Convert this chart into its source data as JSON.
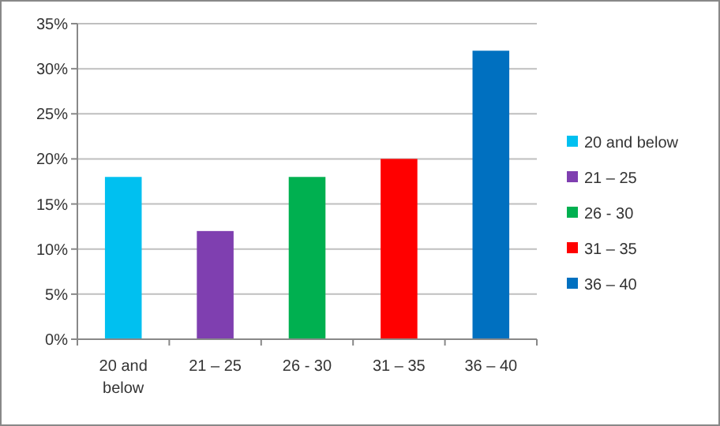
{
  "chart_data": {
    "type": "bar",
    "categories": [
      "20 and below",
      "21 – 25",
      "26 - 30",
      "31 – 35",
      "36 – 40"
    ],
    "series": [
      {
        "name": "20 and below",
        "color": "#00c0f0",
        "values": [
          18,
          null,
          null,
          null,
          null
        ]
      },
      {
        "name": "21 – 25",
        "color": "#7f3fb0",
        "values": [
          null,
          12,
          null,
          null,
          null
        ]
      },
      {
        "name": "26 - 30",
        "color": "#00b050",
        "values": [
          null,
          null,
          18,
          null,
          null
        ]
      },
      {
        "name": "31 – 35",
        "color": "#ff0000",
        "values": [
          null,
          null,
          null,
          20,
          null
        ]
      },
      {
        "name": "36 – 40",
        "color": "#0070c0",
        "values": [
          null,
          null,
          null,
          null,
          32
        ]
      }
    ],
    "ylim": [
      0,
      35
    ],
    "yticks": [
      {
        "value": 0,
        "label": "0%"
      },
      {
        "value": 5,
        "label": "5%"
      },
      {
        "value": 10,
        "label": "10%"
      },
      {
        "value": 15,
        "label": "15%"
      },
      {
        "value": 20,
        "label": "20%"
      },
      {
        "value": 25,
        "label": "25%"
      },
      {
        "value": 30,
        "label": "30%"
      },
      {
        "value": 35,
        "label": "35%"
      }
    ],
    "grid": "y",
    "legend": "right"
  }
}
